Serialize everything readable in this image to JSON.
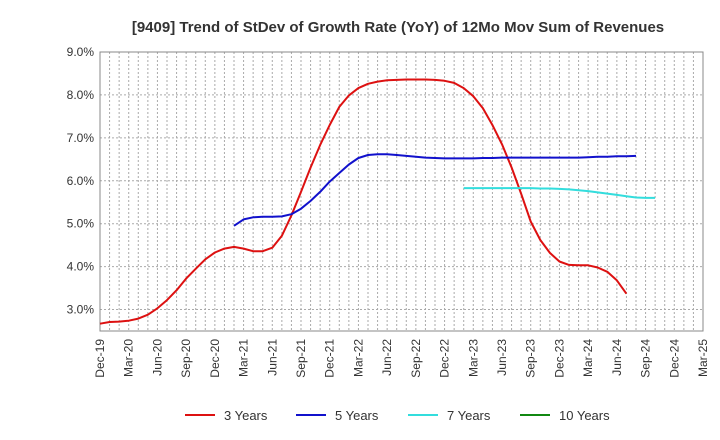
{
  "chart_data": {
    "type": "line",
    "title": "[9409]  Trend of StDev of Growth Rate (YoY) of 12Mo Mov Sum of Revenues",
    "xlabel": "",
    "ylabel": "",
    "ylim": [
      2.5,
      9.0
    ],
    "y_ticks": [
      3.0,
      4.0,
      5.0,
      6.0,
      7.0,
      8.0,
      9.0
    ],
    "y_tick_labels": [
      "3.0%",
      "4.0%",
      "5.0%",
      "6.0%",
      "7.0%",
      "8.0%",
      "9.0%"
    ],
    "x_start": "Dec-19",
    "x_tick_labels": [
      "Dec-19",
      "Mar-20",
      "Jun-20",
      "Sep-20",
      "Dec-20",
      "Mar-21",
      "Jun-21",
      "Sep-21",
      "Dec-21",
      "Mar-22",
      "Jun-22",
      "Sep-22",
      "Dec-22",
      "Mar-23",
      "Jun-23",
      "Sep-23",
      "Dec-23",
      "Mar-24",
      "Jun-24",
      "Sep-24",
      "Dec-24",
      "Mar-25"
    ],
    "grid": true,
    "legend_position": "bottom",
    "series": [
      {
        "name": "3 Years",
        "color": "#dd1111",
        "start_month": 0,
        "values": [
          2.67,
          2.71,
          2.72,
          2.74,
          2.79,
          2.88,
          3.03,
          3.22,
          3.45,
          3.72,
          3.95,
          4.17,
          4.33,
          4.42,
          4.46,
          4.42,
          4.36,
          4.36,
          4.44,
          4.72,
          5.19,
          5.74,
          6.31,
          6.83,
          7.3,
          7.72,
          7.99,
          8.16,
          8.26,
          8.31,
          8.34,
          8.35,
          8.36,
          8.36,
          8.36,
          8.35,
          8.33,
          8.28,
          8.16,
          7.97,
          7.69,
          7.3,
          6.85,
          6.31,
          5.7,
          5.05,
          4.62,
          4.32,
          4.12,
          4.04,
          4.03,
          4.03,
          3.98,
          3.88,
          3.68,
          3.37
        ]
      },
      {
        "name": "5 Years",
        "color": "#1111cc",
        "start_month": 14,
        "values": [
          4.95,
          5.1,
          5.15,
          5.16,
          5.16,
          5.17,
          5.22,
          5.35,
          5.53,
          5.74,
          5.98,
          6.18,
          6.38,
          6.53,
          6.6,
          6.62,
          6.62,
          6.6,
          6.58,
          6.56,
          6.54,
          6.53,
          6.52,
          6.52,
          6.52,
          6.52,
          6.53,
          6.53,
          6.54,
          6.54,
          6.54,
          6.54,
          6.54,
          6.54,
          6.54,
          6.54,
          6.54,
          6.55,
          6.56,
          6.56,
          6.57,
          6.57,
          6.58
        ]
      },
      {
        "name": "7 Years",
        "color": "#33dddd",
        "start_month": 38,
        "values": [
          5.83,
          5.83,
          5.83,
          5.83,
          5.83,
          5.83,
          5.83,
          5.83,
          5.82,
          5.82,
          5.81,
          5.8,
          5.78,
          5.76,
          5.73,
          5.7,
          5.67,
          5.64,
          5.61,
          5.6,
          5.6
        ]
      },
      {
        "name": "10 Years",
        "color": "#118811",
        "start_month": 0,
        "values": []
      }
    ]
  }
}
